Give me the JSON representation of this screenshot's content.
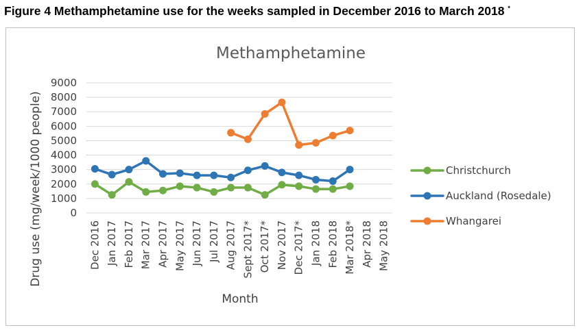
{
  "figure": {
    "caption": "Figure 4 Methamphetamine use for the weeks sampled in December 2016 to March 2018",
    "caption_mark": "*"
  },
  "chart_data": {
    "type": "line",
    "title": "Methamphetamine",
    "xlabel": "Month",
    "ylabel": "Drug use (mg/week/1000 people)",
    "ylim": [
      0,
      9000
    ],
    "yticks": [
      0,
      1000,
      2000,
      3000,
      4000,
      5000,
      6000,
      7000,
      8000,
      9000
    ],
    "grid": true,
    "legend_position": "right",
    "categories": [
      "Dec 2016",
      "Jan 2017",
      "Feb 2017",
      "Mar 2017",
      "Apr 2017",
      "May 2017",
      "Jun 2017",
      "Jul 2017",
      "Aug 2017",
      "Sept 2017*",
      "Oct 2017*",
      "Nov 2017",
      "Dec 2017*",
      "Jan 2018",
      "Feb 2018",
      "Mar 2018*",
      "Apr 2018",
      "May 2018"
    ],
    "series": [
      {
        "name": "Christchurch",
        "color": "#70ad47",
        "values": [
          2000,
          1250,
          2150,
          1450,
          1550,
          1850,
          1750,
          1450,
          1750,
          1750,
          1250,
          1950,
          1850,
          1650,
          1650,
          1850,
          null,
          null
        ]
      },
      {
        "name": "Auckland (Rosedale)",
        "color": "#2e75b6",
        "values": [
          3050,
          2650,
          3000,
          3600,
          2700,
          2750,
          2600,
          2600,
          2450,
          2950,
          3250,
          2800,
          2600,
          2300,
          2200,
          3000,
          null,
          null
        ]
      },
      {
        "name": "Whangarei",
        "color": "#ed7d31",
        "values": [
          null,
          null,
          null,
          null,
          null,
          null,
          null,
          null,
          5550,
          5100,
          6850,
          7650,
          4700,
          4850,
          5350,
          5700,
          null,
          null
        ]
      }
    ]
  }
}
